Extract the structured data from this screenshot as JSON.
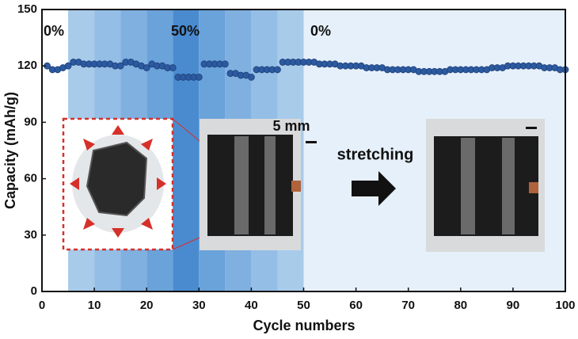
{
  "chart_data": {
    "type": "scatter",
    "xlabel": "Cycle numbers",
    "ylabel": "Capacity (mAh/g)",
    "xlim": [
      0,
      100
    ],
    "ylim": [
      0,
      150
    ],
    "xticks": [
      0,
      10,
      20,
      30,
      40,
      50,
      60,
      70,
      80,
      90,
      100
    ],
    "yticks": [
      0,
      30,
      60,
      90,
      120,
      150
    ],
    "color": "#2c5aa0",
    "bands": [
      {
        "x0": 5,
        "x1": 10,
        "color": "#a8cbea"
      },
      {
        "x0": 10,
        "x1": 15,
        "color": "#94bee6"
      },
      {
        "x0": 15,
        "x1": 20,
        "color": "#7fb0e0"
      },
      {
        "x0": 20,
        "x1": 25,
        "color": "#6aa2da"
      },
      {
        "x0": 25,
        "x1": 30,
        "color": "#4a8bcf"
      },
      {
        "x0": 30,
        "x1": 35,
        "color": "#6aa2da"
      },
      {
        "x0": 35,
        "x1": 40,
        "color": "#7fb0e0"
      },
      {
        "x0": 40,
        "x1": 45,
        "color": "#94bee6"
      },
      {
        "x0": 45,
        "x1": 50,
        "color": "#a8cbea"
      },
      {
        "x0": 50,
        "x1": 100,
        "color": "#e6f0fa"
      }
    ],
    "strain_labels": [
      "0%",
      "50%",
      "0%"
    ],
    "scale_label": "5 mm",
    "arrow_label": "stretching",
    "x": [
      1,
      2,
      3,
      4,
      5,
      6,
      7,
      8,
      9,
      10,
      11,
      12,
      13,
      14,
      15,
      16,
      17,
      18,
      19,
      20,
      21,
      22,
      23,
      24,
      25,
      26,
      27,
      28,
      29,
      30,
      31,
      32,
      33,
      34,
      35,
      36,
      37,
      38,
      39,
      40,
      41,
      42,
      43,
      44,
      45,
      46,
      47,
      48,
      49,
      50,
      51,
      52,
      53,
      54,
      55,
      56,
      57,
      58,
      59,
      60,
      61,
      62,
      63,
      64,
      65,
      66,
      67,
      68,
      69,
      70,
      71,
      72,
      73,
      74,
      75,
      76,
      77,
      78,
      79,
      80,
      81,
      82,
      83,
      84,
      85,
      86,
      87,
      88,
      89,
      90,
      91,
      92,
      93,
      94,
      95,
      96,
      97,
      98,
      99,
      100
    ],
    "values": [
      120,
      118,
      118,
      119,
      120,
      122,
      122,
      121,
      121,
      121,
      121,
      121,
      121,
      120,
      120,
      122,
      122,
      121,
      120,
      119,
      121,
      120,
      120,
      119,
      119,
      114,
      114,
      114,
      114,
      114,
      121,
      121,
      121,
      121,
      121,
      116,
      116,
      115,
      115,
      114,
      118,
      118,
      118,
      118,
      118,
      122,
      122,
      122,
      122,
      122,
      122,
      122,
      121,
      121,
      121,
      121,
      120,
      120,
      120,
      120,
      120,
      119,
      119,
      119,
      119,
      118,
      118,
      118,
      118,
      118,
      118,
      117,
      117,
      117,
      117,
      117,
      117,
      118,
      118,
      118,
      118,
      118,
      118,
      118,
      118,
      119,
      119,
      119,
      120,
      120,
      120,
      120,
      120,
      120,
      120,
      119,
      119,
      119,
      118,
      118
    ]
  }
}
